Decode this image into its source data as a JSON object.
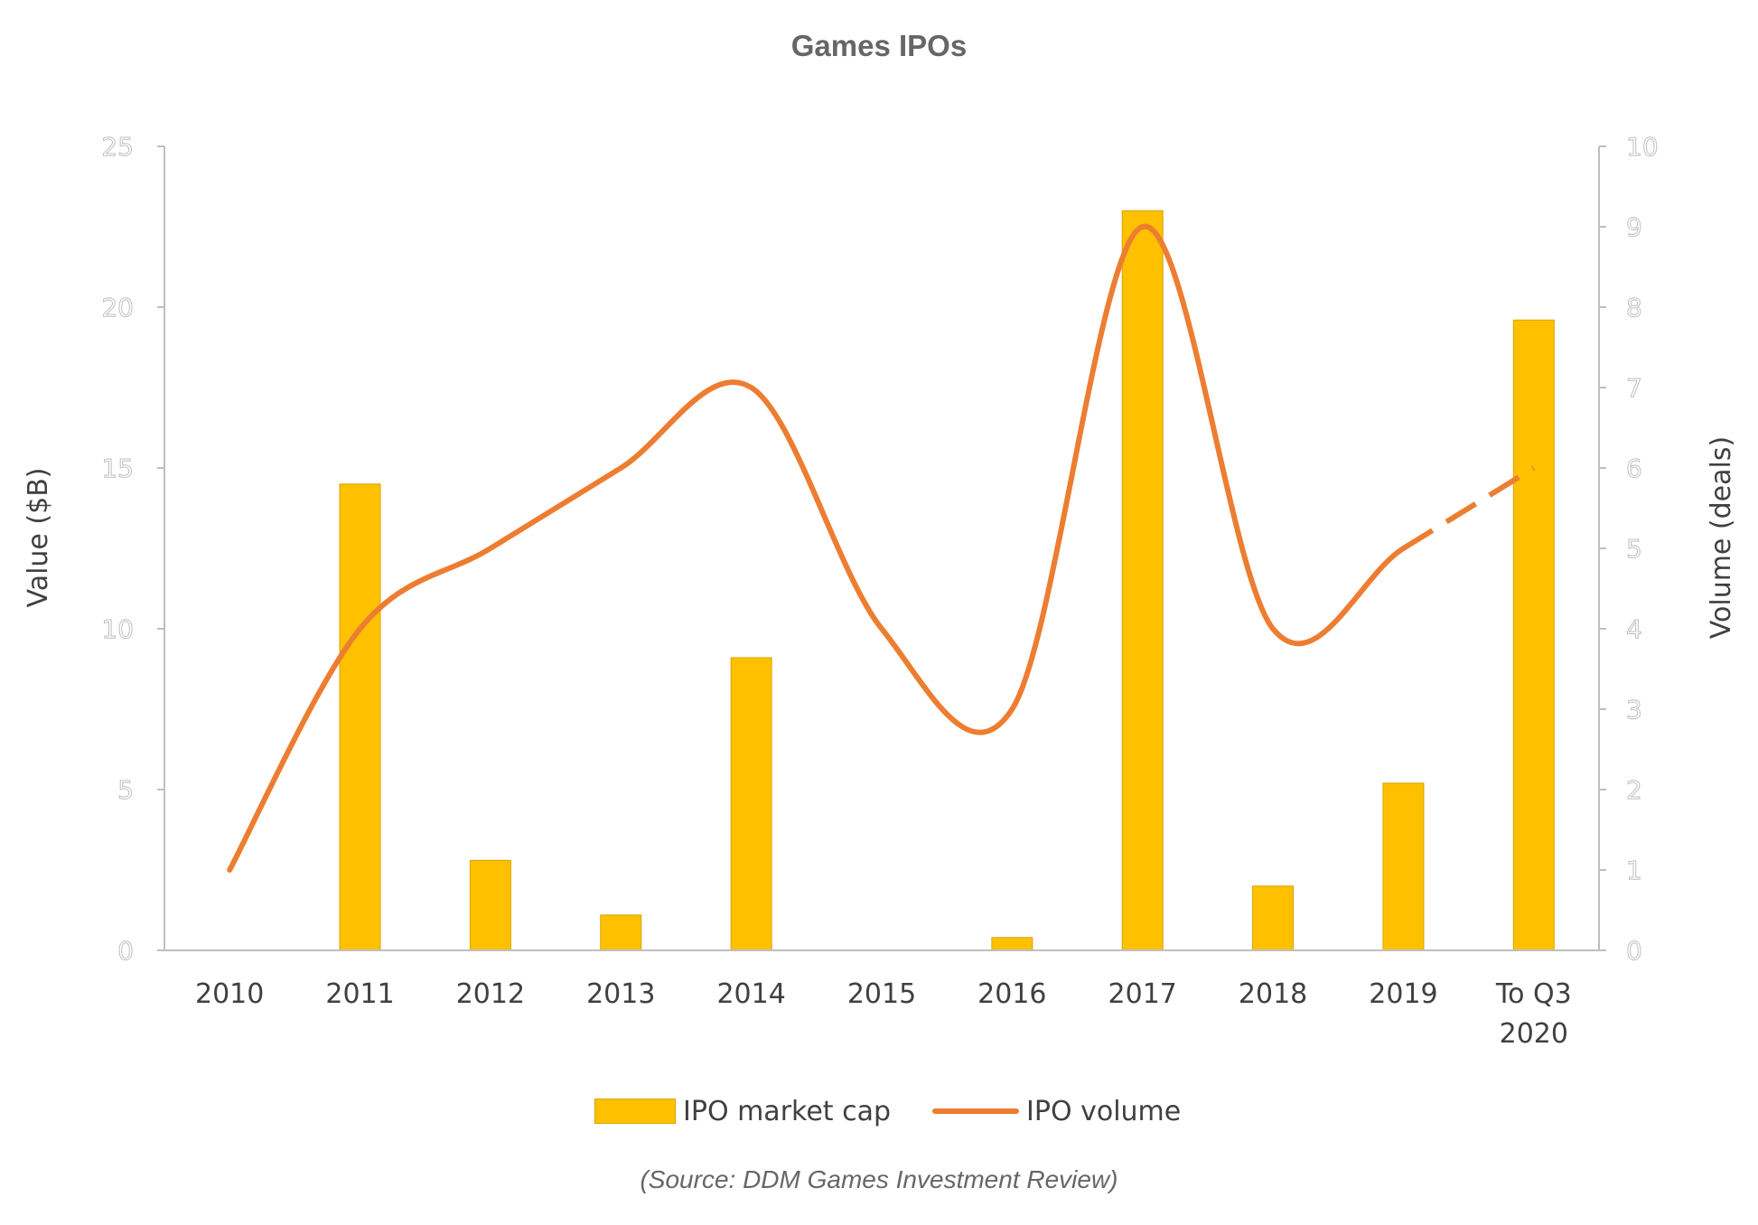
{
  "title": "Games IPOs",
  "source_note": "(Source: DDM Games Investment Review)",
  "colors": {
    "bar": "#ffc000",
    "line": "#ed7d31",
    "axis": "#bfbfbf",
    "text": "#595959"
  },
  "chart_data": {
    "type": "bar+line",
    "categories": [
      "2010",
      "2011",
      "2012",
      "2013",
      "2014",
      "2015",
      "2016",
      "2017",
      "2018",
      "2019",
      "To Q3 2020"
    ],
    "series": [
      {
        "name": "IPO market cap",
        "type": "bar",
        "axis": "left",
        "values": [
          0,
          14.5,
          2.8,
          1.1,
          9.1,
          0,
          0.4,
          23.0,
          2.0,
          5.2,
          19.6
        ]
      },
      {
        "name": "IPO volume",
        "type": "line",
        "axis": "right",
        "smooth": true,
        "values": [
          1,
          4,
          5,
          6,
          7,
          4,
          3,
          9,
          4,
          5,
          6
        ],
        "dashed_from_index": 9
      }
    ],
    "y_left": {
      "label": "Value ($B)",
      "ylim": [
        0,
        25
      ],
      "ticks": [
        "0",
        "5",
        "10",
        "15",
        "20",
        "25"
      ]
    },
    "y_right": {
      "label": "Volume (deals)",
      "ylim": [
        0,
        10
      ],
      "ticks": [
        "0",
        "1",
        "2",
        "3",
        "4",
        "5",
        "6",
        "7",
        "8",
        "9",
        "10"
      ]
    },
    "legend": {
      "position": "bottom",
      "items": [
        "IPO market cap",
        "IPO volume"
      ]
    },
    "grid": false
  }
}
